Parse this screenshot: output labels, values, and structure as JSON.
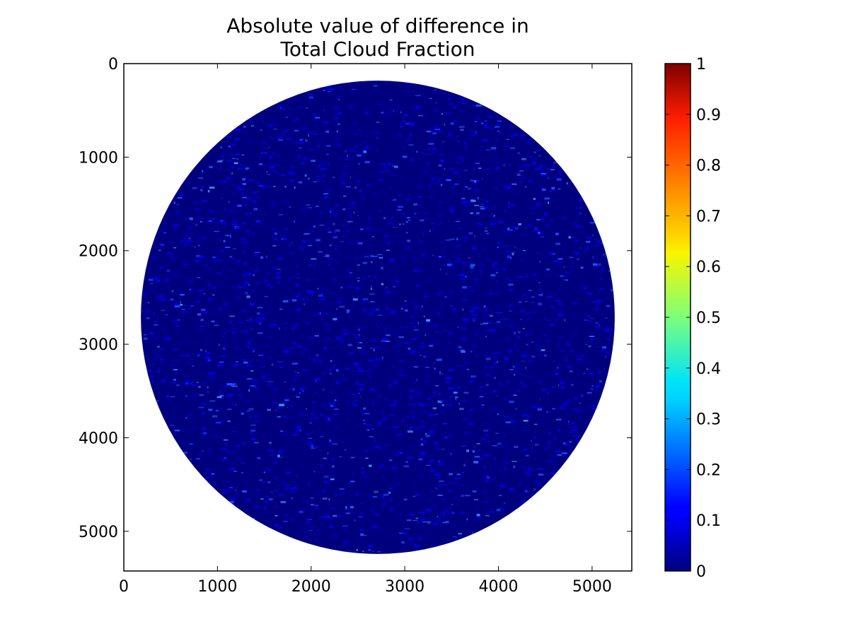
{
  "chart_data": {
    "type": "heatmap",
    "title_lines": [
      "Absolute value of difference in",
      "Total Cloud Fraction"
    ],
    "xlabel": "",
    "ylabel": "",
    "xlim": [
      0,
      5424
    ],
    "ylim": [
      5424,
      0
    ],
    "x_ticks": [
      0,
      1000,
      2000,
      3000,
      4000,
      5000
    ],
    "y_ticks": [
      0,
      1000,
      2000,
      3000,
      4000,
      5000
    ],
    "x_tick_labels": [
      "0",
      "1000",
      "2000",
      "3000",
      "4000",
      "5000"
    ],
    "y_tick_labels": [
      "0",
      "1000",
      "2000",
      "3000",
      "4000",
      "5000"
    ],
    "disk": {
      "center_x": 2712,
      "center_y": 2712,
      "radius": 2530
    },
    "dominant_value": 0.0,
    "value_range_in_disk": [
      0.0,
      0.3
    ],
    "colorbar": {
      "colormap": "jet",
      "range": [
        0,
        1
      ],
      "ticks": [
        0,
        0.1,
        0.2,
        0.3,
        0.4,
        0.5,
        0.6,
        0.7,
        0.8,
        0.9,
        1
      ],
      "tick_labels": [
        "0",
        "0.1",
        "0.2",
        "0.3",
        "0.4",
        "0.5",
        "0.6",
        "0.7",
        "0.8",
        "0.9",
        "1"
      ]
    },
    "colors": {
      "background_zero": "#00007f",
      "difference_low": "#0000ff",
      "difference_mid": "#1f5cff",
      "difference_high": "#3fa0ff"
    },
    "grid": false,
    "legend": "none"
  }
}
